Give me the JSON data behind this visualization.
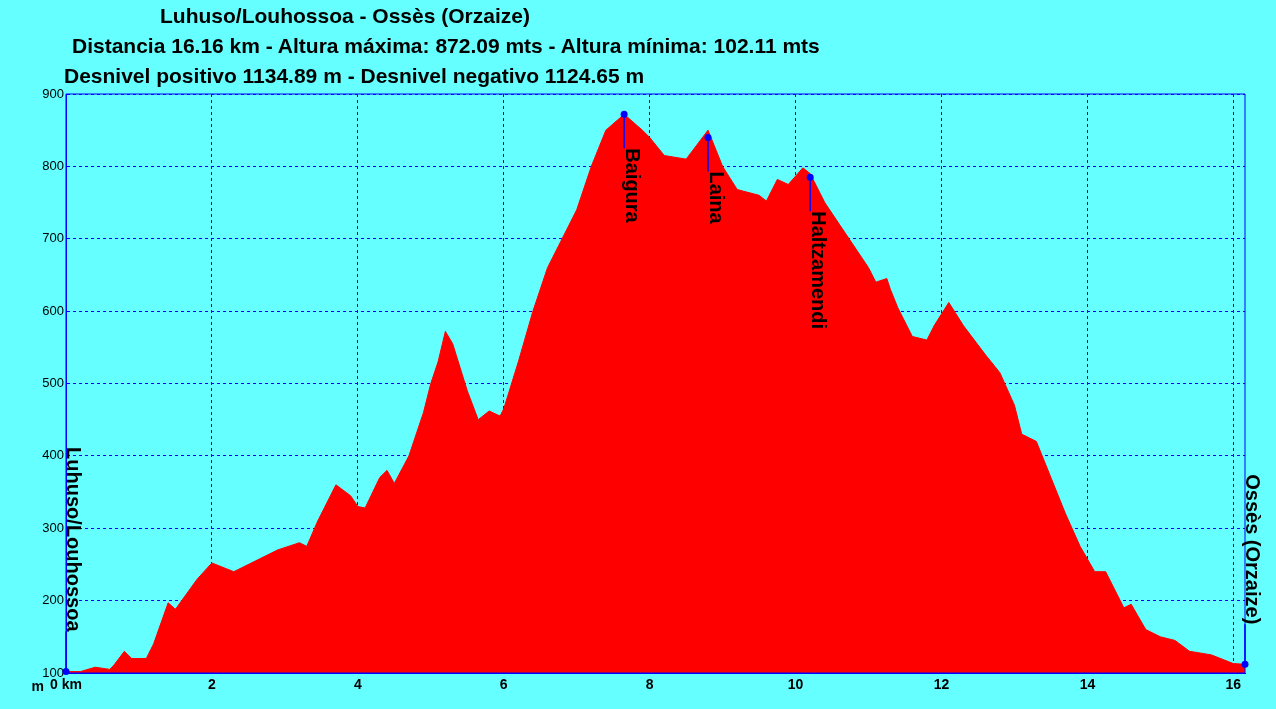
{
  "chart_data": {
    "type": "area",
    "title": "Luhuso/Louhossoa - Ossès (Orzaize)",
    "subtitle": "Distancia 16.16 km - Altura máxima: 872.09 mts - Altura mínima: 102.11 mts",
    "annotations": [
      "Desnivel positivo 1134.89 m - Desnivel negativo 1124.65 m",
      {
        "text": "Luhuso/Louhossoa",
        "x": 0,
        "y": 102
      },
      {
        "text": "Baigura",
        "x": 7.65,
        "y": 872
      },
      {
        "text": "Laina",
        "x": 8.8,
        "y": 840
      },
      {
        "text": "Haltzamendi",
        "x": 10.2,
        "y": 785
      },
      {
        "text": "Ossès (Orzaize)",
        "x": 16.16,
        "y": 112
      }
    ],
    "ylabel": "m",
    "color": "#ff0000",
    "x": [
      0,
      0.2,
      0.4,
      0.6,
      0.65,
      0.8,
      0.9,
      1.1,
      1.2,
      1.4,
      1.5,
      1.8,
      2.0,
      2.3,
      2.6,
      2.9,
      3.2,
      3.3,
      3.45,
      3.7,
      3.9,
      4.0,
      4.1,
      4.3,
      4.4,
      4.5,
      4.7,
      4.9,
      5.0,
      5.1,
      5.2,
      5.3,
      5.5,
      5.65,
      5.8,
      5.95,
      6.0,
      6.2,
      6.4,
      6.6,
      6.8,
      7.0,
      7.2,
      7.4,
      7.65,
      7.9,
      8.0,
      8.2,
      8.5,
      8.8,
      9.0,
      9.2,
      9.5,
      9.6,
      9.75,
      9.9,
      10.1,
      10.2,
      10.4,
      10.6,
      10.8,
      11.0,
      11.1,
      11.25,
      11.3,
      11.4,
      11.6,
      11.8,
      11.9,
      12.1,
      12.3,
      12.6,
      12.8,
      13.0,
      13.1,
      13.3,
      13.5,
      13.7,
      13.9,
      14.1,
      14.25,
      14.5,
      14.6,
      14.8,
      15.0,
      15.2,
      15.4,
      15.7,
      16.0,
      16.16
    ],
    "values": [
      102,
      102,
      108,
      105,
      110,
      130,
      120,
      120,
      140,
      197,
      188,
      230,
      252,
      240,
      255,
      270,
      280,
      275,
      310,
      360,
      345,
      330,
      328,
      370,
      380,
      362,
      400,
      460,
      500,
      530,
      572,
      555,
      490,
      450,
      462,
      455,
      465,
      530,
      600,
      660,
      700,
      740,
      800,
      850,
      872,
      850,
      840,
      815,
      810,
      850,
      800,
      768,
      760,
      752,
      782,
      775,
      798,
      790,
      750,
      720,
      690,
      660,
      640,
      645,
      630,
      605,
      565,
      560,
      580,
      612,
      580,
      540,
      515,
      470,
      430,
      420,
      370,
      320,
      275,
      240,
      240,
      190,
      195,
      160,
      150,
      145,
      130,
      125,
      113,
      112
    ],
    "xlim": [
      0,
      16.16
    ],
    "xticks": [
      {
        "value": 0,
        "label": "0 km"
      },
      2,
      4,
      6,
      8,
      10,
      12,
      14,
      16
    ],
    "ylim": [
      100,
      900
    ],
    "yticks": [
      100,
      200,
      300,
      400,
      500,
      600,
      700,
      800,
      900
    ],
    "grid": true
  }
}
